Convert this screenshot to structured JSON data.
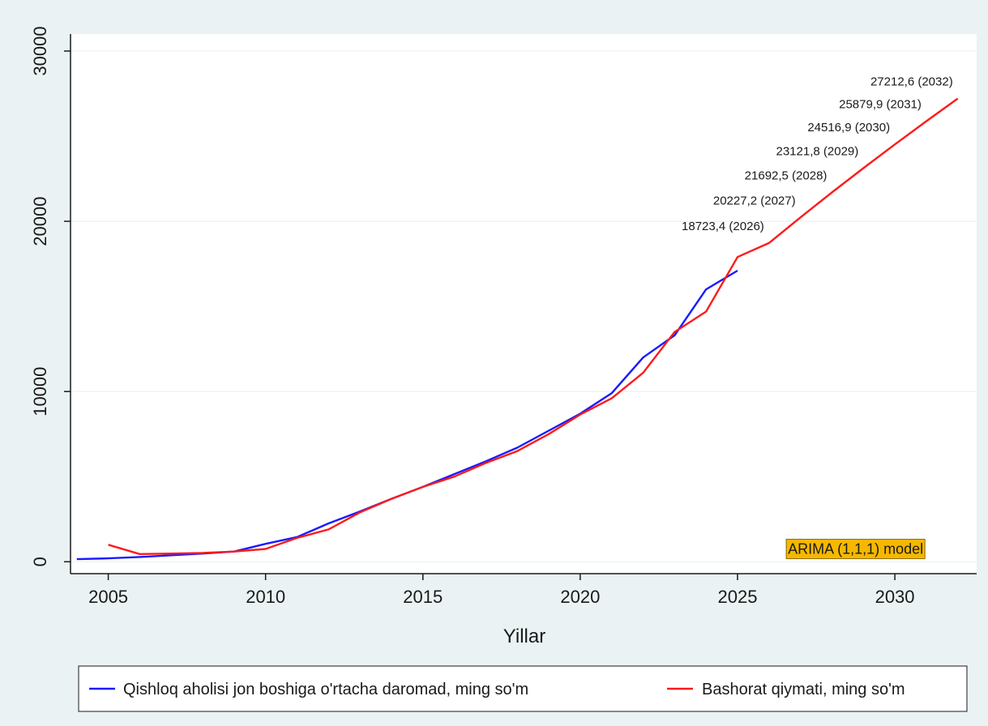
{
  "chart_data": {
    "type": "line",
    "title": "",
    "xlabel": "Yillar",
    "ylabel": "",
    "xlim": [
      2003.8,
      2032.6
    ],
    "ylim": [
      -700,
      31000
    ],
    "x_ticks": [
      2005,
      2010,
      2015,
      2020,
      2025,
      2030
    ],
    "y_ticks": [
      0,
      10000,
      20000,
      30000
    ],
    "grid": "horizontal",
    "legend_position": "bottom",
    "colors": {
      "plot_bg": "#ffffff",
      "outer_bg": "#eaf2f3",
      "grid": "#eaf2f3",
      "series1": "#1a1aff",
      "series2": "#ff1a1a",
      "annotation_bg": "#f5b800"
    },
    "series": [
      {
        "name": "Qishloq aholisi jon boshiga o'rtacha daromad, ming so'm",
        "color": "#1a1aff",
        "x": [
          2004,
          2005,
          2006,
          2007,
          2008,
          2009,
          2010,
          2011,
          2012,
          2013,
          2014,
          2015,
          2016,
          2017,
          2018,
          2019,
          2020,
          2021,
          2022,
          2023,
          2024,
          2025
        ],
        "values": [
          150,
          200,
          280,
          380,
          480,
          600,
          1050,
          1450,
          2250,
          2950,
          3700,
          4400,
          5150,
          5900,
          6700,
          7700,
          8700,
          9900,
          12000,
          13300,
          16000,
          17100
        ]
      },
      {
        "name": "Bashorat qiymati, ming so'm",
        "color": "#ff1a1a",
        "x": [
          2005,
          2006,
          2007,
          2008,
          2009,
          2010,
          2011,
          2012,
          2013,
          2014,
          2015,
          2016,
          2017,
          2018,
          2019,
          2020,
          2021,
          2022,
          2023,
          2024,
          2025,
          2026,
          2027,
          2028,
          2029,
          2030,
          2031,
          2032
        ],
        "values": [
          1000,
          450,
          480,
          520,
          600,
          750,
          1400,
          1900,
          2900,
          3700,
          4400,
          5000,
          5800,
          6500,
          7500,
          8650,
          9600,
          11100,
          13500,
          14700,
          17900,
          18723.4,
          20227.2,
          21692.5,
          23121.8,
          24516.9,
          25879.9,
          27212.6
        ]
      }
    ],
    "data_labels": [
      {
        "x": 2026,
        "y": 18723.4,
        "text": "18723,4 (2026)"
      },
      {
        "x": 2027,
        "y": 20227.2,
        "text": "20227,2 (2027)"
      },
      {
        "x": 2028,
        "y": 21692.5,
        "text": "21692,5 (2028)"
      },
      {
        "x": 2029,
        "y": 23121.8,
        "text": "23121,8 (2029)"
      },
      {
        "x": 2030,
        "y": 24516.9,
        "text": "24516,9 (2030)"
      },
      {
        "x": 2031,
        "y": 25879.9,
        "text": "25879,9 (2031)"
      },
      {
        "x": 2032,
        "y": 27212.6,
        "text": "27212,6 (2032)"
      }
    ],
    "annotation": {
      "text": "ARIMA (1,1,1) model",
      "x": 2026.6,
      "y": 750
    }
  }
}
